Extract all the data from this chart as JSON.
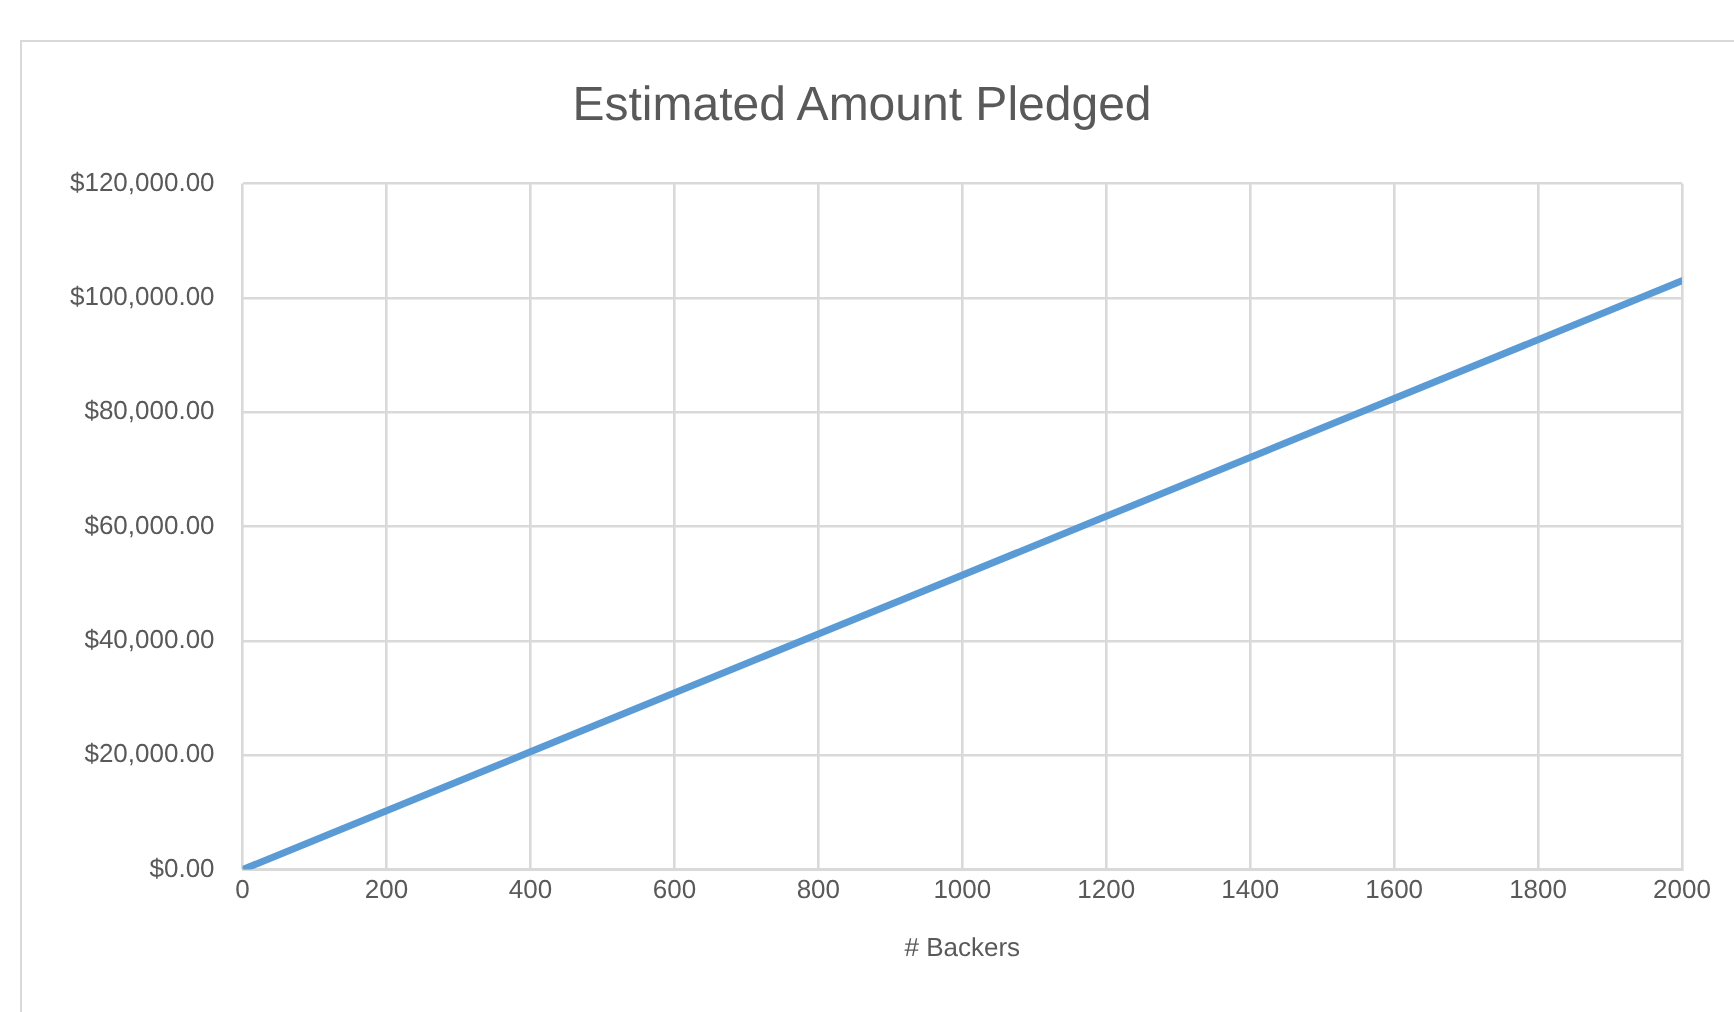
{
  "chart_data": {
    "type": "line",
    "title": "Estimated Amount Pledged",
    "xlabel": "# Backers",
    "x": [
      0,
      400,
      800,
      1200,
      1600,
      2000
    ],
    "series": [
      {
        "color": "#5b9bd5",
        "values": [
          0,
          20600,
          41200,
          61800,
          82400,
          103000
        ]
      }
    ],
    "xlim": [
      0,
      2000
    ],
    "xticks": [
      0,
      200,
      400,
      600,
      800,
      1000,
      1200,
      1400,
      1600,
      1800,
      2000
    ],
    "ylim": [
      0,
      120000
    ],
    "yticks": [
      {
        "value": 0,
        "label": "$0.00"
      },
      {
        "value": 20000,
        "label": "$20,000.00"
      },
      {
        "value": 40000,
        "label": "$40,000.00"
      },
      {
        "value": 60000,
        "label": "$60,000.00"
      },
      {
        "value": 80000,
        "label": "$80,000.00"
      },
      {
        "value": 100000,
        "label": "$100,000.00"
      },
      {
        "value": 120000,
        "label": "$120,000.00"
      }
    ],
    "grid": true,
    "legend": false,
    "marker": "none",
    "line_style": "solid"
  }
}
